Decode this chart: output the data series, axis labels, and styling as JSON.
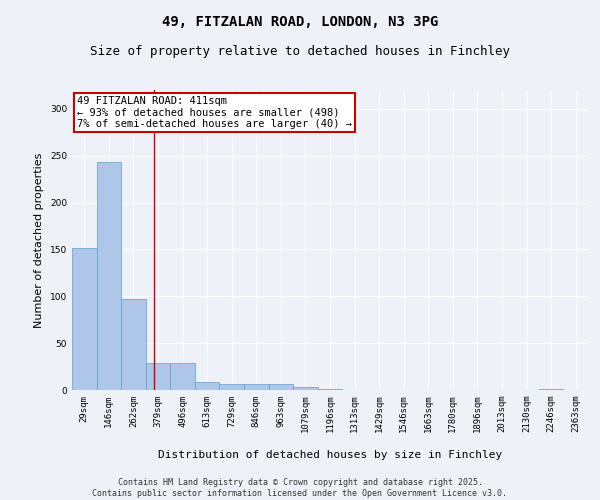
{
  "title": "49, FITZALAN ROAD, LONDON, N3 3PG",
  "subtitle": "Size of property relative to detached houses in Finchley",
  "xlabel": "Distribution of detached houses by size in Finchley",
  "ylabel": "Number of detached properties",
  "footer": "Contains HM Land Registry data © Crown copyright and database right 2025.\nContains public sector information licensed under the Open Government Licence v3.0.",
  "bar_labels": [
    "29sqm",
    "146sqm",
    "262sqm",
    "379sqm",
    "496sqm",
    "613sqm",
    "729sqm",
    "846sqm",
    "963sqm",
    "1079sqm",
    "1196sqm",
    "1313sqm",
    "1429sqm",
    "1546sqm",
    "1663sqm",
    "1780sqm",
    "1896sqm",
    "2013sqm",
    "2130sqm",
    "2246sqm",
    "2363sqm"
  ],
  "bar_values": [
    152,
    243,
    97,
    29,
    29,
    9,
    6,
    6,
    6,
    3,
    1,
    0,
    0,
    0,
    0,
    0,
    0,
    0,
    0,
    1,
    0
  ],
  "bar_color": "#aec6e8",
  "bar_edge_color": "#5a9fd4",
  "annotation_text": "49 FITZALAN ROAD: 411sqm\n← 93% of detached houses are smaller (498)\n7% of semi-detached houses are larger (40) →",
  "annotation_box_color": "#ffffff",
  "annotation_box_edge_color": "#cc0000",
  "vline_x": 2.85,
  "vline_color": "#cc0000",
  "ylim": [
    0,
    320
  ],
  "yticks": [
    0,
    50,
    100,
    150,
    200,
    250,
    300
  ],
  "title_fontsize": 10,
  "subtitle_fontsize": 9,
  "xlabel_fontsize": 8,
  "ylabel_fontsize": 8,
  "tick_fontsize": 6.5,
  "annotation_fontsize": 7.5,
  "footer_fontsize": 6,
  "bg_color": "#eef2f8",
  "plot_bg_color": "#eef2f8"
}
